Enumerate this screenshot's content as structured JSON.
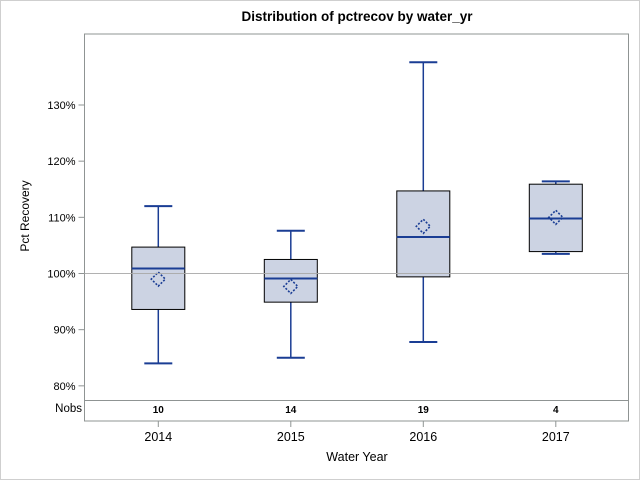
{
  "chart_data": {
    "type": "boxplot",
    "title": "Distribution of pctrecov by water_yr",
    "xlabel": "Water Year",
    "ylabel": "Pct Recovery",
    "nobs_label": "Nobs",
    "categories": [
      "2014",
      "2015",
      "2016",
      "2017"
    ],
    "nobs": [
      "10",
      "14",
      "19",
      "4"
    ],
    "yticks": [
      {
        "value": 80,
        "label": "80%"
      },
      {
        "value": 90,
        "label": "90%"
      },
      {
        "value": 100,
        "label": "100%"
      },
      {
        "value": 110,
        "label": "110%"
      },
      {
        "value": 120,
        "label": "120%"
      },
      {
        "value": 130,
        "label": "130%"
      }
    ],
    "ylim": [
      77,
      143
    ],
    "reference_line": 100,
    "legend": "none",
    "grid": "off",
    "series": [
      {
        "category": "2014",
        "n": 10,
        "whisker_low": 84.0,
        "q1": 93.6,
        "median": 100.9,
        "mean": 99.0,
        "q3": 104.7,
        "whisker_high": 112.0
      },
      {
        "category": "2015",
        "n": 14,
        "whisker_low": 85.0,
        "q1": 94.9,
        "median": 99.1,
        "mean": 97.7,
        "q3": 102.5,
        "whisker_high": 107.6
      },
      {
        "category": "2016",
        "n": 19,
        "whisker_low": 87.8,
        "q1": 99.4,
        "median": 106.5,
        "mean": 108.4,
        "q3": 114.7,
        "whisker_high": 137.6
      },
      {
        "category": "2017",
        "n": 4,
        "whisker_low": 103.5,
        "q1": 103.9,
        "median": 109.8,
        "mean": 110.0,
        "q3": 115.9,
        "whisker_high": 116.4
      }
    ],
    "colors": {
      "box_fill": "#ccd3e3",
      "box_border": "#000000",
      "line_blue": "#1a3d94",
      "reference_gray": "#a9a9a9",
      "frame_gray": "#8f9493",
      "tick_text": "#000000"
    }
  }
}
